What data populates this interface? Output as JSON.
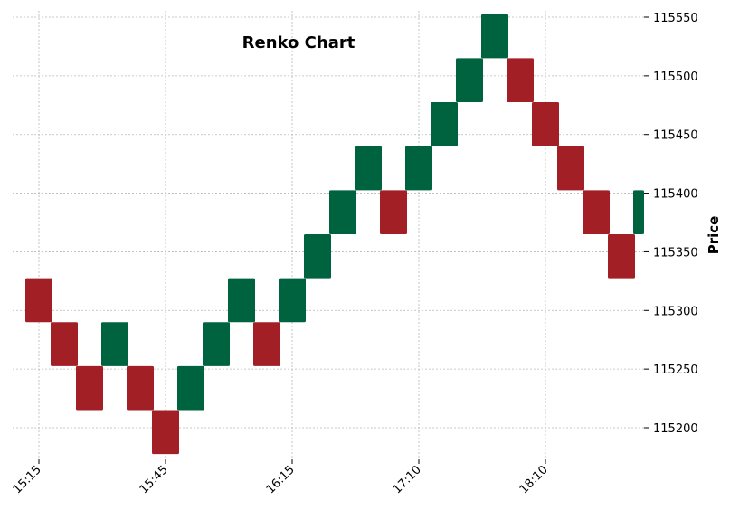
{
  "chart_data": {
    "type": "renko",
    "title": "Renko Chart",
    "ylabel": "Price",
    "xlabel": "",
    "ylim": [
      115175,
      115555
    ],
    "grid": true,
    "y_ticks": [
      115200,
      115250,
      115300,
      115350,
      115400,
      115450,
      115500,
      115550
    ],
    "x_ticks": [
      {
        "label": "15:15",
        "brick_index": 0
      },
      {
        "label": "15:45",
        "brick_index": 5
      },
      {
        "label": "16:15",
        "brick_index": 10
      },
      {
        "label": "17:10",
        "brick_index": 15
      },
      {
        "label": "18:10",
        "brick_index": 20
      }
    ],
    "brick_size": 37.5,
    "colors": {
      "up": "#006340",
      "down": "#a31f26"
    },
    "bricks": [
      {
        "open": 115327.5,
        "close": 115290.0,
        "dir": "down"
      },
      {
        "open": 115290.0,
        "close": 115252.5,
        "dir": "down"
      },
      {
        "open": 115252.5,
        "close": 115215.0,
        "dir": "down"
      },
      {
        "open": 115252.5,
        "close": 115290.0,
        "dir": "up"
      },
      {
        "open": 115252.5,
        "close": 115215.0,
        "dir": "down"
      },
      {
        "open": 115215.0,
        "close": 115177.5,
        "dir": "down"
      },
      {
        "open": 115215.0,
        "close": 115252.5,
        "dir": "up"
      },
      {
        "open": 115252.5,
        "close": 115290.0,
        "dir": "up"
      },
      {
        "open": 115290.0,
        "close": 115327.5,
        "dir": "up"
      },
      {
        "open": 115290.0,
        "close": 115252.5,
        "dir": "down"
      },
      {
        "open": 115290.0,
        "close": 115327.5,
        "dir": "up"
      },
      {
        "open": 115327.5,
        "close": 115365.0,
        "dir": "up"
      },
      {
        "open": 115365.0,
        "close": 115402.5,
        "dir": "up"
      },
      {
        "open": 115402.5,
        "close": 115440.0,
        "dir": "up"
      },
      {
        "open": 115402.5,
        "close": 115365.0,
        "dir": "down"
      },
      {
        "open": 115402.5,
        "close": 115440.0,
        "dir": "up"
      },
      {
        "open": 115440.0,
        "close": 115477.5,
        "dir": "up"
      },
      {
        "open": 115477.5,
        "close": 115515.0,
        "dir": "up"
      },
      {
        "open": 115515.0,
        "close": 115552.5,
        "dir": "up"
      },
      {
        "open": 115515.0,
        "close": 115477.5,
        "dir": "down"
      },
      {
        "open": 115477.5,
        "close": 115440.0,
        "dir": "down"
      },
      {
        "open": 115440.0,
        "close": 115402.5,
        "dir": "down"
      },
      {
        "open": 115402.5,
        "close": 115365.0,
        "dir": "down"
      },
      {
        "open": 115365.0,
        "close": 115327.5,
        "dir": "down"
      },
      {
        "open": 115365.0,
        "close": 115402.5,
        "dir": "up"
      }
    ]
  }
}
